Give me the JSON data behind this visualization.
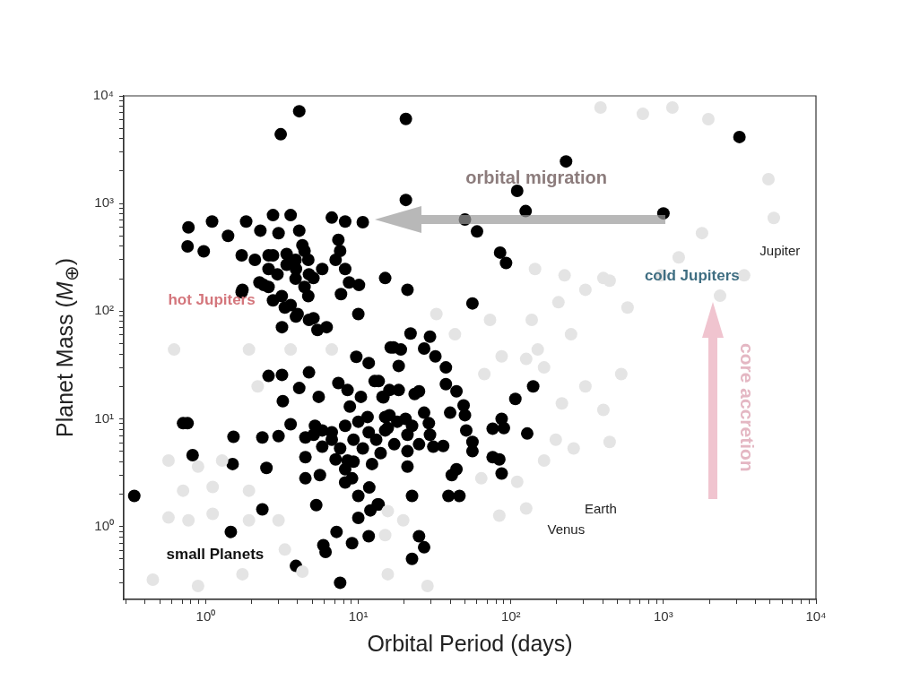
{
  "chart_data": {
    "type": "scatter",
    "xlabel": "Orbital Period (days)",
    "ylabel": "Planet Mass (M$_{⊕}$)",
    "log": "xy",
    "marker": "circle",
    "xlim": [
      0.29,
      10000
    ],
    "ylim": [
      0.21,
      10000
    ],
    "xticks": [
      {
        "value": 0.3,
        "label": null
      },
      {
        "value": 0.4,
        "label": null
      },
      {
        "value": 0.5,
        "label": null
      },
      {
        "value": 0.6,
        "label": null
      },
      {
        "value": 0.7,
        "label": null
      },
      {
        "value": 0.8,
        "label": null
      },
      {
        "value": 0.9,
        "label": null
      },
      {
        "value": 1,
        "label": "10⁰"
      },
      {
        "value": 2,
        "label": null
      },
      {
        "value": 3,
        "label": null
      },
      {
        "value": 4,
        "label": null
      },
      {
        "value": 5,
        "label": null
      },
      {
        "value": 6,
        "label": null
      },
      {
        "value": 7,
        "label": null
      },
      {
        "value": 8,
        "label": null
      },
      {
        "value": 9,
        "label": null
      },
      {
        "value": 10,
        "label": "10¹"
      },
      {
        "value": 20,
        "label": null
      },
      {
        "value": 30,
        "label": null
      },
      {
        "value": 40,
        "label": null
      },
      {
        "value": 50,
        "label": null
      },
      {
        "value": 60,
        "label": null
      },
      {
        "value": 70,
        "label": null
      },
      {
        "value": 80,
        "label": null
      },
      {
        "value": 90,
        "label": null
      },
      {
        "value": 100,
        "label": "10²"
      },
      {
        "value": 200,
        "label": null
      },
      {
        "value": 300,
        "label": null
      },
      {
        "value": 400,
        "label": null
      },
      {
        "value": 500,
        "label": null
      },
      {
        "value": 600,
        "label": null
      },
      {
        "value": 700,
        "label": null
      },
      {
        "value": 800,
        "label": null
      },
      {
        "value": 900,
        "label": null
      },
      {
        "value": 1000,
        "label": "10³"
      },
      {
        "value": 2000,
        "label": null
      },
      {
        "value": 3000,
        "label": null
      },
      {
        "value": 4000,
        "label": null
      },
      {
        "value": 5000,
        "label": null
      },
      {
        "value": 6000,
        "label": null
      },
      {
        "value": 7000,
        "label": null
      },
      {
        "value": 8000,
        "label": null
      },
      {
        "value": 9000,
        "label": null
      },
      {
        "value": 10000,
        "label": "10⁴"
      }
    ],
    "yticks": [
      {
        "value": 0.3,
        "label": null
      },
      {
        "value": 0.4,
        "label": null
      },
      {
        "value": 0.5,
        "label": null
      },
      {
        "value": 0.6,
        "label": null
      },
      {
        "value": 0.7,
        "label": null
      },
      {
        "value": 0.8,
        "label": null
      },
      {
        "value": 0.9,
        "label": null
      },
      {
        "value": 1,
        "label": "10⁰"
      },
      {
        "value": 2,
        "label": null
      },
      {
        "value": 3,
        "label": null
      },
      {
        "value": 4,
        "label": null
      },
      {
        "value": 5,
        "label": null
      },
      {
        "value": 6,
        "label": null
      },
      {
        "value": 7,
        "label": null
      },
      {
        "value": 8,
        "label": null
      },
      {
        "value": 9,
        "label": null
      },
      {
        "value": 10,
        "label": "10¹"
      },
      {
        "value": 20,
        "label": null
      },
      {
        "value": 30,
        "label": null
      },
      {
        "value": 40,
        "label": null
      },
      {
        "value": 50,
        "label": null
      },
      {
        "value": 60,
        "label": null
      },
      {
        "value": 70,
        "label": null
      },
      {
        "value": 80,
        "label": null
      },
      {
        "value": 90,
        "label": null
      },
      {
        "value": 100,
        "label": "10²"
      },
      {
        "value": 200,
        "label": null
      },
      {
        "value": 300,
        "label": null
      },
      {
        "value": 400,
        "label": null
      },
      {
        "value": 500,
        "label": null
      },
      {
        "value": 600,
        "label": null
      },
      {
        "value": 700,
        "label": null
      },
      {
        "value": 800,
        "label": null
      },
      {
        "value": 900,
        "label": null
      },
      {
        "value": 1000,
        "label": "10³"
      },
      {
        "value": 2000,
        "label": null
      },
      {
        "value": 3000,
        "label": null
      },
      {
        "value": 4000,
        "label": null
      },
      {
        "value": 5000,
        "label": null
      },
      {
        "value": 6000,
        "label": null
      },
      {
        "value": 7000,
        "label": null
      },
      {
        "value": 8000,
        "label": null
      },
      {
        "value": 9000,
        "label": null
      },
      {
        "value": 10000,
        "label": "10⁴"
      }
    ],
    "series": [
      {
        "color": "#e4e4e4",
        "x": [
          205,
          308,
          404,
          582,
          248,
          150,
          126,
          87,
          165,
          308,
          216,
          404,
          529,
          67,
          43,
          32.5,
          73,
          137,
          387,
          733,
          1145,
          1970,
          4880,
          5290,
          3380,
          2350,
          960,
          444,
          225,
          144,
          1260,
          1790,
          197,
          258,
          165,
          110,
          126,
          84,
          64,
          15.6,
          15,
          15.6,
          28.4,
          19.7,
          444,
          0.57,
          0.89,
          1.28,
          0.71,
          1.11,
          0.57,
          0.77,
          1.11,
          1.92,
          1.92,
          3.0,
          0.45,
          0.89,
          1.74,
          3.3,
          4.3,
          0.62,
          1.92,
          3.6,
          2.19,
          6.7
        ],
        "values": [
          121,
          158,
          203,
          108,
          61,
          44,
          36,
          38,
          30,
          20,
          13.9,
          12.1,
          26,
          26,
          61,
          94,
          83,
          83,
          7800,
          6800,
          7800,
          6070,
          1680,
          735,
          215,
          139,
          215,
          192,
          215,
          246,
          316,
          531,
          6.4,
          5.3,
          4.1,
          2.6,
          1.47,
          1.26,
          2.8,
          1.39,
          0.83,
          0.36,
          0.28,
          1.14,
          6.1,
          4.1,
          3.6,
          4.1,
          2.15,
          2.33,
          1.21,
          1.14,
          1.31,
          2.15,
          1.14,
          1.14,
          0.32,
          0.28,
          0.36,
          0.61,
          0.38,
          44,
          44,
          44,
          20,
          44
        ]
      },
      {
        "color": "#000000",
        "x": [
          4.1,
          20.5,
          3150,
          230,
          110,
          125,
          1000,
          60,
          85,
          93,
          3.1,
          20.5,
          50,
          0.77,
          0.76,
          0.97,
          1.1,
          1.4,
          1.84,
          2.28,
          2.76,
          3.0,
          3.6,
          4.1,
          6.7,
          8.2,
          10.7,
          7.4,
          4.3,
          1.72,
          2.1,
          2.58,
          1.72,
          2.25,
          2.95,
          3.39,
          3.88,
          4.44,
          2.58,
          3.15,
          3.6,
          4.7,
          5.08,
          3.39,
          3.9,
          2.76,
          4.7,
          5.08,
          4.0,
          4.75,
          5.8,
          7.1,
          8.2,
          8.7,
          7.6,
          2.58,
          3.88,
          4.44,
          1.74,
          2.4,
          2.76,
          3.3,
          3.9,
          4.75,
          3.16,
          5.4,
          6.2,
          7.7,
          10.1,
          10,
          15,
          16.3,
          21,
          56,
          22,
          29.5,
          17,
          27,
          19,
          18.4,
          32,
          37.5,
          13.6,
          16,
          14.4,
          18.4,
          23.4,
          25,
          37.5,
          44,
          140,
          107,
          49,
          40,
          27,
          20.4,
          15,
          87,
          50,
          76,
          90,
          128,
          51,
          29,
          15.6,
          56,
          56,
          76,
          84,
          87,
          44,
          41,
          39,
          46,
          22.5,
          21,
          21,
          25,
          31,
          36,
          13.6,
          25,
          27,
          22.5,
          29.5,
          21,
          0.34,
          0.82,
          1.52,
          2.35,
          3.0,
          1.5,
          2.5,
          2.35,
          1.46,
          3.9,
          7.6,
          5.3,
          4.5,
          4.5,
          5.6,
          5.9,
          6.1,
          7.2,
          9.1,
          11.7,
          10,
          12,
          13.4,
          10,
          11.8,
          8.2,
          9.1,
          8.2,
          5.8,
          4.5,
          7.1,
          8.5,
          12.3,
          0.71,
          0.76,
          2.58,
          3.16,
          4.75,
          4.1,
          5.5,
          3.2,
          7.4,
          8.5,
          10.4,
          12.8,
          9.7,
          11.7,
          8.8,
          14.6,
          16,
          3.6,
          5.2,
          6.7,
          11.7,
          6.7,
          7.6,
          9.3,
          10.7,
          13.1,
          15,
          17.2,
          10,
          11.5,
          8.2,
          5.8,
          14,
          9.3,
          18,
          22.5,
          5.1
        ],
        "values": [
          7200,
          6100,
          4150,
          2460,
          1310,
          850,
          810,
          550,
          350,
          280,
          4400,
          1080,
          710,
          600,
          400,
          360,
          680,
          500,
          680,
          560,
          780,
          530,
          780,
          560,
          740,
          680,
          670,
          460,
          410,
          330,
          300,
          246,
          150,
          185,
          220,
          270,
          200,
          168,
          168,
          138,
          114,
          300,
          203,
          340,
          246,
          330,
          138,
          86,
          94,
          220,
          246,
          300,
          246,
          185,
          363,
          330,
          300,
          363,
          158,
          175,
          126,
          108,
          89,
          83,
          71,
          67,
          71,
          144,
          175,
          94,
          203,
          46,
          158,
          118,
          62,
          58,
          46,
          45,
          44,
          31,
          38,
          30,
          22.4,
          18.5,
          16,
          18.5,
          17,
          18,
          21,
          18,
          20,
          15.3,
          13.3,
          11.4,
          11.4,
          10,
          10.4,
          10,
          10.8,
          8.1,
          8.2,
          7.3,
          7.8,
          9.1,
          8.2,
          6.1,
          5.0,
          4.4,
          4.2,
          3.1,
          3.4,
          3.0,
          1.92,
          1.92,
          1.92,
          3.6,
          5.0,
          5.8,
          5.5,
          5.6,
          1.6,
          0.81,
          0.64,
          0.5,
          7.1,
          7.1,
          1.92,
          4.6,
          6.8,
          6.7,
          6.9,
          3.8,
          3.5,
          1.44,
          0.89,
          0.43,
          0.3,
          1.58,
          4.4,
          2.8,
          3.0,
          0.67,
          0.58,
          0.89,
          0.7,
          0.81,
          1.2,
          1.41,
          1.6,
          1.92,
          2.3,
          2.56,
          2.8,
          3.4,
          5.5,
          6.7,
          4.2,
          4.1,
          3.8,
          9.1,
          9.1,
          25,
          25.6,
          27,
          19.3,
          16,
          14.6,
          21.5,
          18.5,
          16,
          22.4,
          37.6,
          33,
          13,
          15.8,
          10.8,
          8.9,
          8.6,
          7.5,
          7.5,
          6.4,
          5.3,
          6.4,
          5.3,
          6.4,
          7.8,
          5.8,
          9.4,
          10.4,
          8.6,
          7.8,
          4.8,
          4.0,
          9.4,
          8.6,
          7.1
        ]
      }
    ],
    "annotations": [
      "hot Jupiters",
      "cold Jupiters",
      "orbital migration",
      "core accretion",
      "small Planets",
      "Jupiter",
      "Earth",
      "Venus"
    ]
  }
}
